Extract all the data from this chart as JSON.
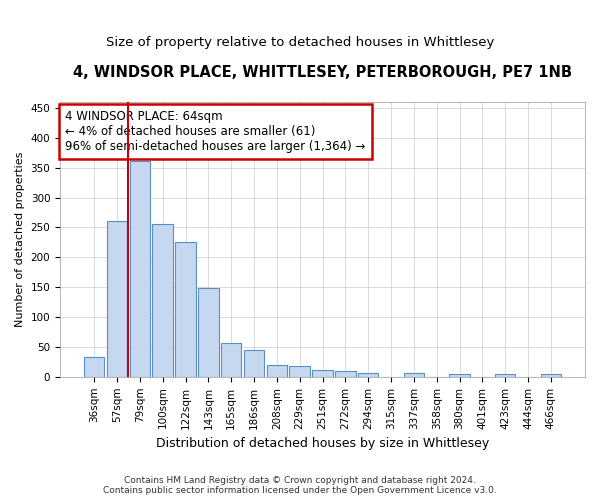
{
  "title": "4, WINDSOR PLACE, WHITTLESEY, PETERBOROUGH, PE7 1NB",
  "subtitle": "Size of property relative to detached houses in Whittlesey",
  "xlabel": "Distribution of detached houses by size in Whittlesey",
  "ylabel": "Number of detached properties",
  "categories": [
    "36sqm",
    "57sqm",
    "79sqm",
    "100sqm",
    "122sqm",
    "143sqm",
    "165sqm",
    "186sqm",
    "208sqm",
    "229sqm",
    "251sqm",
    "272sqm",
    "294sqm",
    "315sqm",
    "337sqm",
    "358sqm",
    "380sqm",
    "401sqm",
    "423sqm",
    "444sqm",
    "466sqm"
  ],
  "values": [
    33,
    260,
    362,
    255,
    225,
    148,
    57,
    45,
    20,
    18,
    11,
    10,
    7,
    0,
    6,
    0,
    4,
    0,
    4,
    0,
    4
  ],
  "bar_color": "#c5d8f0",
  "bar_edge_color": "#5a8fc0",
  "annotation_line1": "4 WINDSOR PLACE: 64sqm",
  "annotation_line2": "← 4% of detached houses are smaller (61)",
  "annotation_line3": "96% of semi-detached houses are larger (1,364) →",
  "annotation_box_facecolor": "#ffffff",
  "annotation_border_color": "#cc0000",
  "vline_color": "#cc0000",
  "vline_x": 1.5,
  "ylim": [
    0,
    460
  ],
  "yticks": [
    0,
    50,
    100,
    150,
    200,
    250,
    300,
    350,
    400,
    450
  ],
  "footer_line1": "Contains HM Land Registry data © Crown copyright and database right 2024.",
  "footer_line2": "Contains public sector information licensed under the Open Government Licence v3.0.",
  "bg_color": "#ffffff",
  "plot_bg_color": "#ffffff",
  "grid_color": "#cccccc",
  "title_fontsize": 10.5,
  "subtitle_fontsize": 9.5,
  "xlabel_fontsize": 9,
  "ylabel_fontsize": 8,
  "tick_fontsize": 7.5,
  "annotation_fontsize": 8.5,
  "footer_fontsize": 6.5
}
